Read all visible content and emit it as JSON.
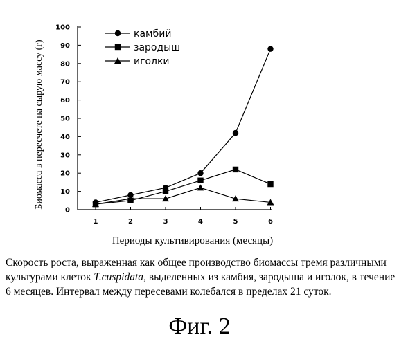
{
  "chart_data": {
    "type": "line",
    "title": "",
    "ylabel": "Биомасса в пересчете на сырую массу (г)",
    "xlabel": "Периоды культивирования (месяцы)",
    "x": [
      1,
      2,
      3,
      4,
      5,
      6
    ],
    "ylim": [
      0,
      100
    ],
    "yticks": [
      0,
      10,
      20,
      30,
      40,
      50,
      60,
      70,
      80,
      90,
      100
    ],
    "grid": false,
    "legend_position": "top-center",
    "series": [
      {
        "name": "камбий",
        "marker": "circle",
        "values": [
          4,
          8,
          12,
          20,
          42,
          88
        ]
      },
      {
        "name": "зародыш",
        "marker": "square",
        "values": [
          3,
          5,
          10,
          16,
          22,
          14
        ]
      },
      {
        "name": "иголки",
        "marker": "triangle",
        "values": [
          3,
          6,
          6,
          12,
          6,
          4
        ]
      }
    ]
  },
  "caption": {
    "part1": "Скорость роста, выраженная как общее производство биомассы тремя различными культурами клеток ",
    "species": "T.cuspidata",
    "part2": ", выделенных из камбия, зародыша и иголок, в течение 6 месяцев. Интервал между пересевами колебался в пределах 21 суток."
  },
  "figure_label": "Фиг. 2"
}
